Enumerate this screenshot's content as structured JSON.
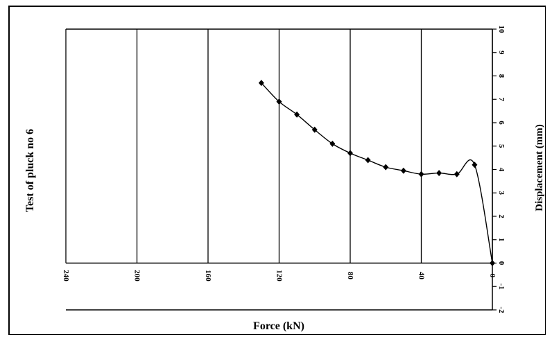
{
  "chart_data": {
    "type": "line",
    "title": "Test of pluck no 6",
    "xlabel": "Force (kN)",
    "ylabel": "Displacement (mm)",
    "x_ticks": [
      "240",
      "200",
      "160",
      "120",
      "80",
      "40",
      "0"
    ],
    "y_ticks": [
      "-2",
      "-1",
      "0",
      "1",
      "2",
      "3",
      "4",
      "5",
      "6",
      "7",
      "8",
      "9",
      "10"
    ],
    "xlim": [
      240,
      0
    ],
    "ylim": [
      -2,
      10
    ],
    "grid": "vertical",
    "series": [
      {
        "x": [
          130,
          120,
          110,
          100,
          90,
          80,
          70,
          60,
          50,
          40,
          30,
          20,
          10,
          0
        ],
        "y": [
          7.7,
          6.9,
          6.35,
          5.7,
          5.1,
          4.7,
          4.4,
          4.1,
          3.95,
          3.8,
          3.85,
          3.8,
          4.2,
          0
        ],
        "color": "#000000"
      }
    ]
  }
}
